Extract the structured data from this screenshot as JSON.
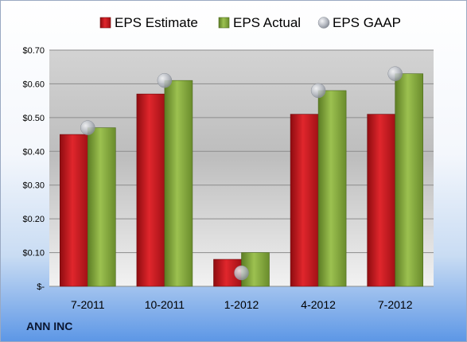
{
  "company_label": "ANN INC",
  "chart_data": {
    "type": "bar",
    "categories": [
      "7-2011",
      "10-2011",
      "1-2012",
      "4-2012",
      "7-2012"
    ],
    "series": [
      {
        "name": "EPS Estimate",
        "type": "bar",
        "color": "#c0161c",
        "values": [
          0.45,
          0.57,
          0.08,
          0.51,
          0.51
        ]
      },
      {
        "name": "EPS Actual",
        "type": "bar",
        "color": "#7fa33c",
        "values": [
          0.47,
          0.61,
          0.1,
          0.58,
          0.63
        ]
      },
      {
        "name": "EPS GAAP",
        "type": "marker",
        "color": "#b8bcc4",
        "values": [
          0.47,
          0.61,
          0.04,
          0.58,
          0.63
        ]
      }
    ],
    "ylim": [
      0,
      0.7
    ],
    "yticks": [
      0,
      0.1,
      0.2,
      0.3,
      0.4,
      0.5,
      0.6,
      0.7
    ],
    "ytick_labels": [
      "$-",
      "$0.10",
      "$0.20",
      "$0.30",
      "$0.40",
      "$0.50",
      "$0.60",
      "$0.70"
    ],
    "grid": true,
    "legend": "top"
  }
}
